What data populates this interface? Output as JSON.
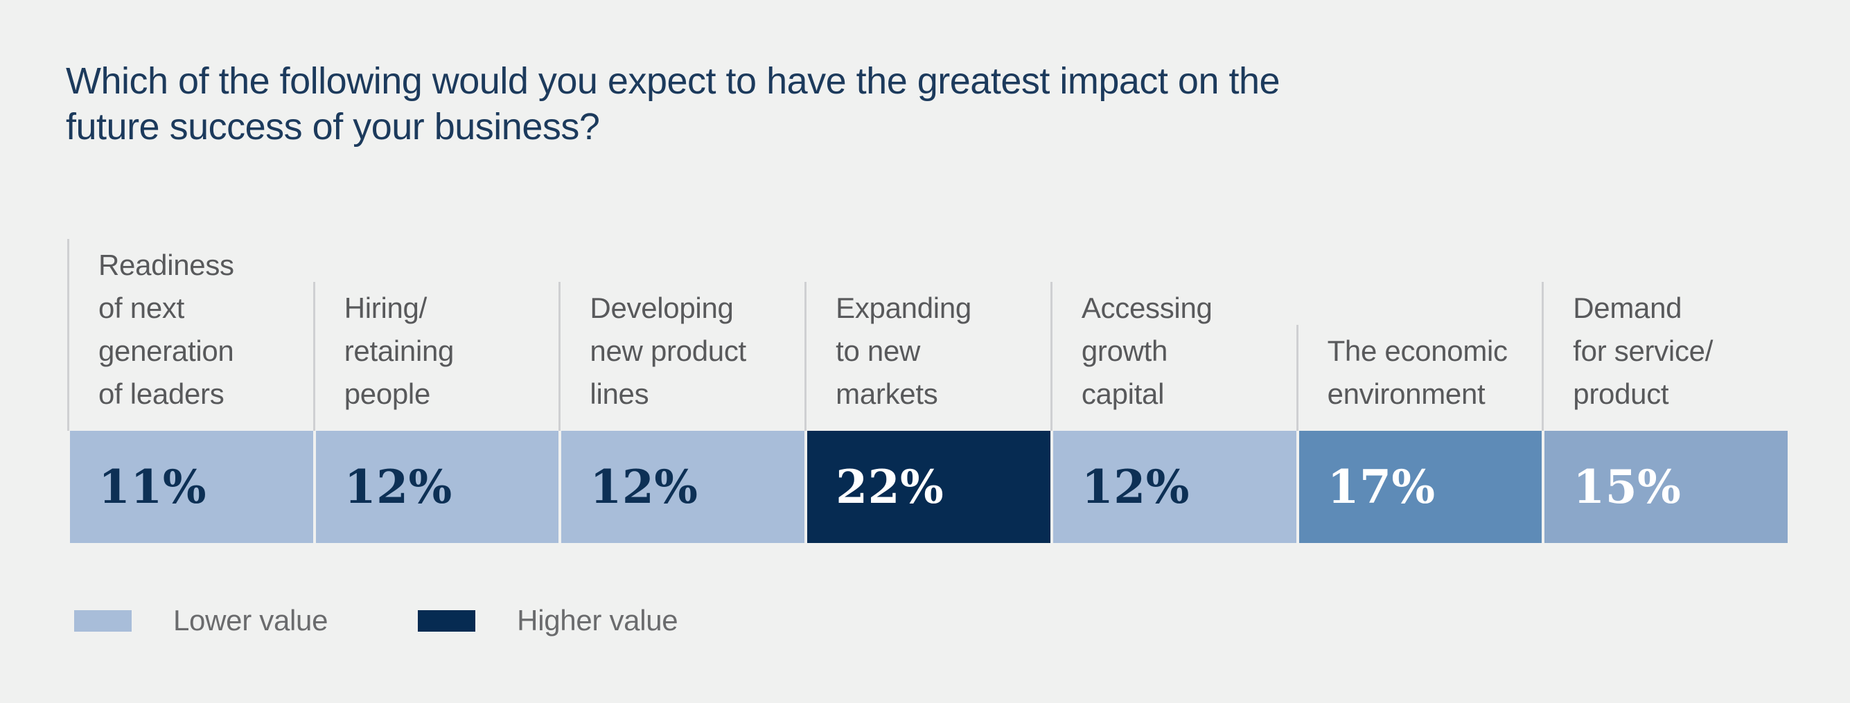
{
  "page": {
    "background": "#f0f1f0",
    "title": "Which of the following would you expect to have the greatest impact on the\nfuture success of your business?",
    "title_color": "#1c3a5c"
  },
  "chart_data": {
    "type": "bar",
    "title": "Which of the following would you expect to have the greatest impact on the future success of your business?",
    "unit": "percent",
    "categories": [
      "Readiness of next generation of leaders",
      "Hiring/retaining people",
      "Developing new product lines",
      "Expanding to new markets",
      "Accessing growth capital",
      "The economic environment",
      "Demand for service/product"
    ],
    "values": [
      11,
      12,
      12,
      22,
      12,
      17,
      15
    ],
    "value_labels": [
      "11%",
      "12%",
      "12%",
      "22%",
      "12%",
      "17%",
      "15%"
    ],
    "layout": "single row of 7 equal-width cells; cell shading encodes value magnitude",
    "legend_position": "bottom-left",
    "legend": [
      {
        "label": "Lower value",
        "color": "#a8bdd9"
      },
      {
        "label": "Higher value",
        "color": "#062b52"
      }
    ]
  },
  "columns": [
    {
      "label": "Readiness\nof next\ngeneration\nof leaders",
      "value_label": "11%",
      "bar_color": "#a8bdd9",
      "value_color": "#0d3055"
    },
    {
      "label": "Hiring/\nretaining\npeople",
      "value_label": "12%",
      "bar_color": "#a8bdd9",
      "value_color": "#0d3055"
    },
    {
      "label": "Developing\nnew product\nlines",
      "value_label": "12%",
      "bar_color": "#a8bdd9",
      "value_color": "#0d3055"
    },
    {
      "label": "Expanding\nto new\nmarkets",
      "value_label": "22%",
      "bar_color": "#062b52",
      "value_color": "#ffffff"
    },
    {
      "label": "Accessing\ngrowth\ncapital",
      "value_label": "12%",
      "bar_color": "#a8bdd9",
      "value_color": "#0d3055"
    },
    {
      "label": "The economic\nenvironment",
      "value_label": "17%",
      "bar_color": "#5e8bb7",
      "value_color": "#ffffff"
    },
    {
      "label": "Demand\nfor service/\nproduct",
      "value_label": "15%",
      "bar_color": "#8ba7c9",
      "value_color": "#ffffff"
    }
  ],
  "legend": {
    "lower": {
      "label": "Lower value",
      "color": "#a8bdd9"
    },
    "higher": {
      "label": "Higher value",
      "color": "#062b52"
    }
  }
}
